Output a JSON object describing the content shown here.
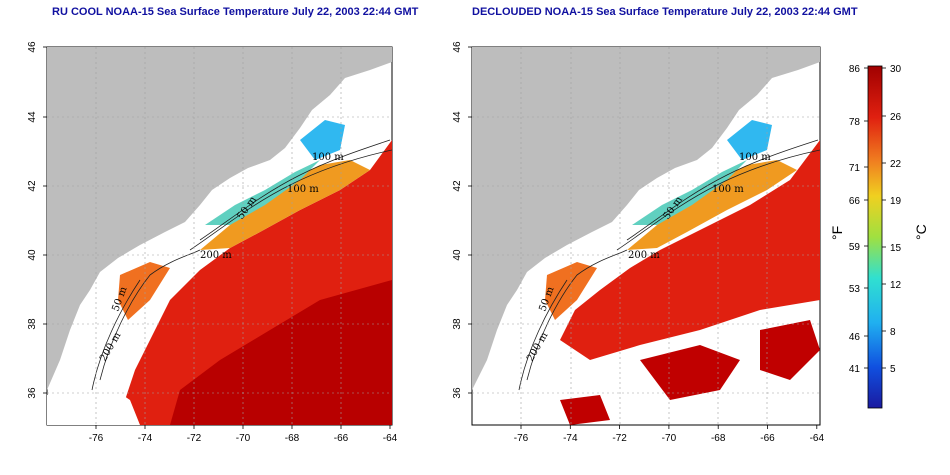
{
  "panels": [
    {
      "id": "left",
      "title": "RU COOL NOAA-15 Sea Surface Temperature July 22, 2003 22:44 GMT",
      "contour_labels": [
        "100 m",
        "100 m",
        "50 m",
        "200 m",
        "50 m",
        "200 m"
      ]
    },
    {
      "id": "right",
      "title": "DECLOUDED NOAA-15 Sea Surface Temperature July 22, 2003 22:44 GMT",
      "contour_labels": [
        "100 m",
        "100 m",
        "50 m",
        "200 m",
        "50 m",
        "200 m"
      ]
    }
  ],
  "axes": {
    "x_ticks": [
      "-76",
      "-74",
      "-72",
      "-70",
      "-68",
      "-66",
      "-64"
    ],
    "y_ticks": [
      "36",
      "38",
      "40",
      "42",
      "44",
      "46"
    ]
  },
  "colorbar": {
    "fahrenheit_label": "°F",
    "celsius_label": "°C",
    "fahrenheit_ticks": [
      "86",
      "78",
      "71",
      "66",
      "59",
      "53",
      "46",
      "41"
    ],
    "celsius_ticks": [
      "30",
      "26",
      "22",
      "19",
      "15",
      "12",
      "8",
      "5"
    ]
  },
  "colors": {
    "land": "#bdbdbd",
    "warm": "#e02010",
    "hot": "#b00000",
    "cool": "#40c0f0",
    "mid": "#f0a020",
    "title": "#1010a0"
  }
}
